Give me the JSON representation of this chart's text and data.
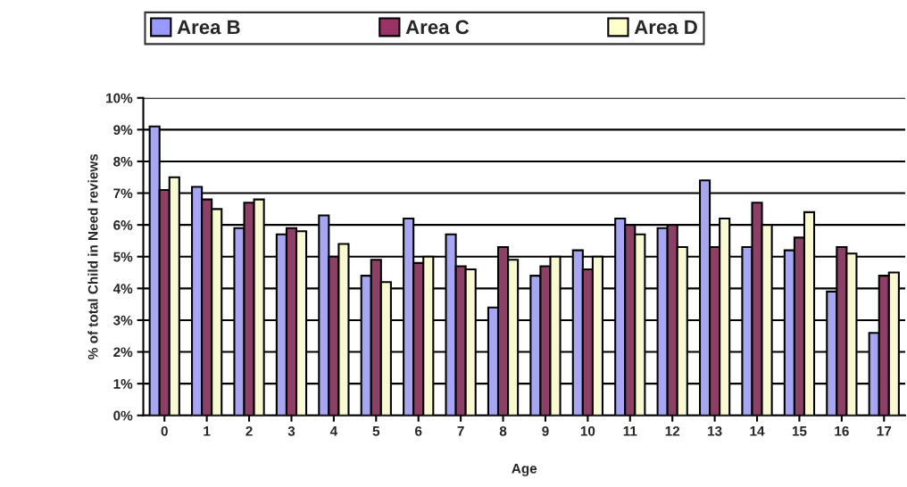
{
  "chart_data": {
    "type": "bar",
    "xlabel": "Age",
    "ylabel": "% of total Child in Need reviews",
    "categories": [
      "0",
      "1",
      "2",
      "3",
      "4",
      "5",
      "6",
      "7",
      "8",
      "9",
      "10",
      "11",
      "12",
      "13",
      "14",
      "15",
      "16",
      "17"
    ],
    "series": [
      {
        "name": "Area B",
        "color": "#9999ff",
        "values": [
          9.1,
          7.2,
          5.9,
          5.7,
          6.3,
          4.4,
          6.2,
          5.7,
          3.4,
          4.4,
          5.2,
          6.2,
          5.9,
          7.4,
          5.3,
          5.2,
          3.9,
          2.6
        ]
      },
      {
        "name": "Area C",
        "color": "#993366",
        "values": [
          7.1,
          6.8,
          6.7,
          5.9,
          5.0,
          4.9,
          4.8,
          4.7,
          5.3,
          4.7,
          4.6,
          6.0,
          6.0,
          5.3,
          6.7,
          5.6,
          5.3,
          4.4
        ]
      },
      {
        "name": "Area D",
        "color": "#ffffcc",
        "values": [
          7.5,
          6.5,
          6.8,
          5.8,
          5.4,
          4.2,
          5.0,
          4.6,
          4.9,
          5.0,
          5.0,
          5.7,
          5.3,
          6.2,
          6.0,
          6.4,
          5.1,
          4.5
        ]
      }
    ],
    "ylim": [
      0,
      10
    ],
    "yticks": [
      {
        "value": 0,
        "label": "0%"
      },
      {
        "value": 1,
        "label": "1%"
      },
      {
        "value": 2,
        "label": "2%"
      },
      {
        "value": 3,
        "label": "3%"
      },
      {
        "value": 4,
        "label": "4%"
      },
      {
        "value": 5,
        "label": "5%"
      },
      {
        "value": 6,
        "label": "6%"
      },
      {
        "value": 7,
        "label": "7%"
      },
      {
        "value": 8,
        "label": "8%"
      },
      {
        "value": 9,
        "label": "9%"
      },
      {
        "value": 10,
        "label": "10%"
      }
    ],
    "grid": "y",
    "legend": "top"
  }
}
